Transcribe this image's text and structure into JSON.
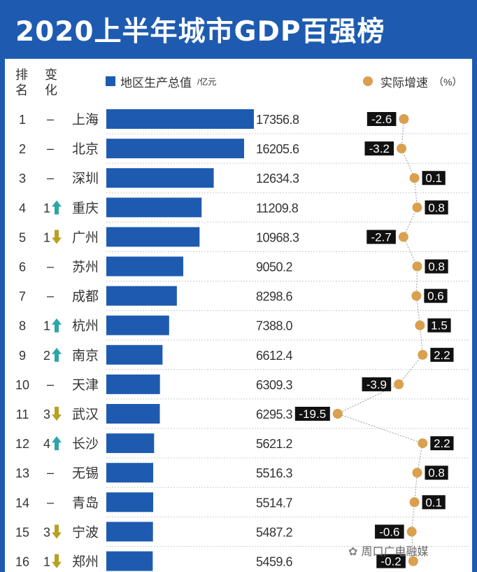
{
  "title": "2020上半年城市GDP百强榜",
  "header": {
    "rank_label": "排名",
    "change_label": "变化",
    "legend_bar_label": "地区生产总值",
    "legend_bar_unit": "/亿元",
    "legend_dot_label": "实际增速",
    "legend_dot_unit": "（%）"
  },
  "colors": {
    "bar": "#1e5bb0",
    "dot": "#d9a04f",
    "up": "#2aa6a8",
    "down": "#b9a11f",
    "label_bg": "#111111",
    "grid": "#cccccc"
  },
  "icons": {
    "up": "arrow-up-icon",
    "down": "arrow-down-icon"
  },
  "chart_data": {
    "type": "bar",
    "title": "2020上半年城市GDP百强榜",
    "categories": [
      "上海",
      "北京",
      "深圳",
      "重庆",
      "广州",
      "苏州",
      "成都",
      "杭州",
      "南京",
      "天津",
      "武汉",
      "长沙",
      "无锡",
      "青岛",
      "宁波",
      "郑州"
    ],
    "ranks": [
      "1",
      "2",
      "3",
      "4",
      "5",
      "6",
      "7",
      "8",
      "9",
      "10",
      "11",
      "12",
      "13",
      "14",
      "15",
      "16"
    ],
    "changes": [
      {
        "num": "",
        "dir": "none"
      },
      {
        "num": "",
        "dir": "none"
      },
      {
        "num": "",
        "dir": "none"
      },
      {
        "num": "1",
        "dir": "up"
      },
      {
        "num": "1",
        "dir": "down"
      },
      {
        "num": "",
        "dir": "none"
      },
      {
        "num": "",
        "dir": "none"
      },
      {
        "num": "1",
        "dir": "up"
      },
      {
        "num": "2",
        "dir": "up"
      },
      {
        "num": "",
        "dir": "none"
      },
      {
        "num": "3",
        "dir": "down"
      },
      {
        "num": "4",
        "dir": "up"
      },
      {
        "num": "",
        "dir": "none"
      },
      {
        "num": "",
        "dir": "none"
      },
      {
        "num": "3",
        "dir": "down"
      },
      {
        "num": "1",
        "dir": "down"
      }
    ],
    "no_change_text": "–",
    "series": [
      {
        "name": "地区生产总值",
        "unit": "/亿元",
        "values": [
          17356.8,
          16205.6,
          12634.3,
          11209.8,
          10968.3,
          9050.2,
          8298.6,
          7388.0,
          6612.4,
          6309.3,
          6295.3,
          5621.2,
          5516.3,
          5514.7,
          5487.2,
          5459.6
        ],
        "labels": [
          "17356.8",
          "16205.6",
          "12634.3",
          "11209.8",
          "10968.3",
          "9050.2",
          "8298.6",
          "7388.0",
          "6612.4",
          "6309.3",
          "6295.3",
          "5621.2",
          "5516.3",
          "5514.7",
          "5487.2",
          "5459.6"
        ]
      },
      {
        "name": "实际增速",
        "unit": "（%）",
        "values": [
          -2.6,
          -3.2,
          0.1,
          0.8,
          -2.7,
          0.8,
          0.6,
          1.5,
          2.2,
          -3.9,
          -19.5,
          2.2,
          0.8,
          0.1,
          -0.6,
          -0.2
        ],
        "labels": [
          "-2.6",
          "-3.2",
          "0.1",
          "0.8",
          "-2.7",
          "0.8",
          "0.6",
          "1.5",
          "2.2",
          "-3.9",
          "-19.5",
          "2.2",
          "0.8",
          "0.1",
          "-0.6",
          "-0.2"
        ]
      }
    ],
    "legend": "top"
  },
  "watermark": {
    "icon": "wechat-icon",
    "text": "周口广电融媒"
  }
}
